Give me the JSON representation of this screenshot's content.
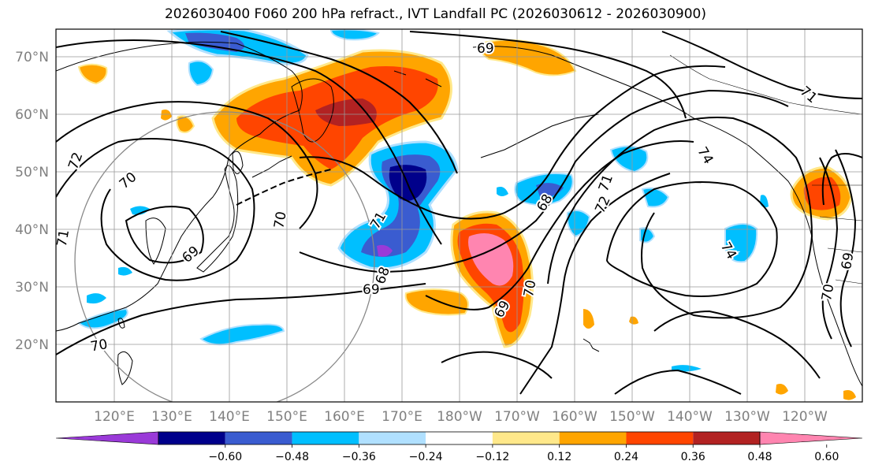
{
  "title": "2026030400 F060 200 hPa refract., IVT Landfall PC (2026030612 - 2026030900)",
  "lat_labels": [
    "70°N",
    "60°N",
    "50°N",
    "40°N",
    "30°N",
    "20°N"
  ],
  "lon_labels": [
    "120°E",
    "130°E",
    "140°E",
    "150°E",
    "160°E",
    "170°E",
    "180°W",
    "170°W",
    "160°W",
    "150°W",
    "140°W",
    "130°W",
    "120°W"
  ],
  "colorbar": {
    "ticks": [
      "−0.60",
      "−0.48",
      "−0.36",
      "−0.24",
      "−0.12",
      "0.12",
      "0.24",
      "0.36",
      "0.48",
      "0.60"
    ],
    "colors": [
      "#9a3ad8",
      "#00008b",
      "#3a5cd0",
      "#00bfff",
      "#b0e0ff",
      "#ffffff",
      "#ffe88a",
      "#ffa500",
      "#ff4500",
      "#b22222",
      "#ff85b0"
    ]
  },
  "contour_labels": [
    "69",
    "71",
    "72",
    "70",
    "70",
    "71",
    "69",
    "68",
    "69",
    "70",
    "70",
    "69",
    "68",
    "71",
    "72",
    "74",
    "74",
    "71",
    "70",
    "69"
  ]
}
